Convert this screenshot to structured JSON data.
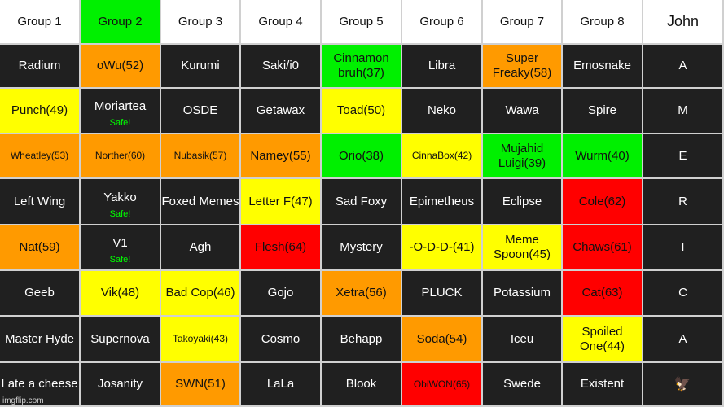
{
  "header": [
    "Group 1",
    "Group 2",
    "Group 3",
    "Group 4",
    "Group 5",
    "Group 6",
    "Group 7",
    "Group 8",
    "John"
  ],
  "header_colors": [
    "white",
    "green",
    "white",
    "white",
    "white",
    "white",
    "white",
    "white",
    "white"
  ],
  "rows": [
    {
      "cells": [
        {
          "text": "Radium",
          "color": "dark"
        },
        {
          "text": "oWu(52)",
          "color": "orange"
        },
        {
          "text": "Kurumi",
          "color": "dark"
        },
        {
          "text": "Saki/i0",
          "color": "dark"
        },
        {
          "text": "Cinnamon bruh(37)",
          "color": "green"
        },
        {
          "text": "Libra",
          "color": "dark"
        },
        {
          "text": "Super Freaky(58)",
          "color": "orange"
        },
        {
          "text": "Emosnake",
          "color": "dark"
        },
        {
          "text": "A",
          "color": "dark"
        }
      ]
    },
    {
      "cells": [
        {
          "text": "Punch(49)",
          "color": "yellow"
        },
        {
          "text": "Moriartea",
          "color": "dark",
          "note": "Safe!"
        },
        {
          "text": "OSDE",
          "color": "dark"
        },
        {
          "text": "Getawax",
          "color": "dark"
        },
        {
          "text": "Toad(50)",
          "color": "yellow"
        },
        {
          "text": "Neko",
          "color": "dark"
        },
        {
          "text": "Wawa",
          "color": "dark"
        },
        {
          "text": "Spire",
          "color": "dark"
        },
        {
          "text": "M",
          "color": "dark"
        }
      ]
    },
    {
      "cells": [
        {
          "text": "Wheatley(53)",
          "color": "orange",
          "small": true
        },
        {
          "text": "Norther(60)",
          "color": "orange",
          "small": true
        },
        {
          "text": "Nubasik(57)",
          "color": "orange",
          "small": true
        },
        {
          "text": "Namey(55)",
          "color": "orange"
        },
        {
          "text": "Orio(38)",
          "color": "green"
        },
        {
          "text": "CinnaBox(42)",
          "color": "yellow",
          "small": true
        },
        {
          "text": "Mujahid Luigi(39)",
          "color": "green"
        },
        {
          "text": "Wurm(40)",
          "color": "green"
        },
        {
          "text": "E",
          "color": "dark"
        }
      ]
    },
    {
      "cells": [
        {
          "text": "Left Wing",
          "color": "dark"
        },
        {
          "text": "Yakko",
          "color": "dark",
          "note": "Safe!"
        },
        {
          "text": "Foxed Memes",
          "color": "dark"
        },
        {
          "text": "Letter F(47)",
          "color": "yellow"
        },
        {
          "text": "Sad Foxy",
          "color": "dark"
        },
        {
          "text": "Epimetheus",
          "color": "dark"
        },
        {
          "text": "Eclipse",
          "color": "dark"
        },
        {
          "text": "Cole(62)",
          "color": "red"
        },
        {
          "text": "R",
          "color": "dark"
        }
      ]
    },
    {
      "cells": [
        {
          "text": "Nat(59)",
          "color": "orange"
        },
        {
          "text": "V1",
          "color": "dark",
          "note": "Safe!"
        },
        {
          "text": "Agh",
          "color": "dark"
        },
        {
          "text": "Flesh(64)",
          "color": "red"
        },
        {
          "text": "Mystery",
          "color": "dark"
        },
        {
          "text": "-O-D-D-(41)",
          "color": "yellow"
        },
        {
          "text": "Meme Spoon(45)",
          "color": "yellow"
        },
        {
          "text": "Chaws(61)",
          "color": "red"
        },
        {
          "text": "I",
          "color": "dark"
        }
      ]
    },
    {
      "cells": [
        {
          "text": "Geeb",
          "color": "dark"
        },
        {
          "text": "Vik(48)",
          "color": "yellow"
        },
        {
          "text": "Bad Cop(46)",
          "color": "yellow"
        },
        {
          "text": "Gojo",
          "color": "dark"
        },
        {
          "text": "Xetra(56)",
          "color": "orange"
        },
        {
          "text": "PLUCK",
          "color": "dark"
        },
        {
          "text": "Potassium",
          "color": "dark"
        },
        {
          "text": "Cat(63)",
          "color": "red"
        },
        {
          "text": "C",
          "color": "dark"
        }
      ]
    },
    {
      "cells": [
        {
          "text": "Master Hyde",
          "color": "dark"
        },
        {
          "text": "Supernova",
          "color": "dark"
        },
        {
          "text": "Takoyaki(43)",
          "color": "yellow",
          "small": true
        },
        {
          "text": "Cosmo",
          "color": "dark"
        },
        {
          "text": "Behapp",
          "color": "dark"
        },
        {
          "text": "Soda(54)",
          "color": "orange"
        },
        {
          "text": "Iceu",
          "color": "dark"
        },
        {
          "text": "Spoiled One(44)",
          "color": "yellow"
        },
        {
          "text": "A",
          "color": "dark"
        }
      ]
    },
    {
      "cells": [
        {
          "text": "I ate a cheese",
          "color": "dark"
        },
        {
          "text": "Josanity",
          "color": "dark"
        },
        {
          "text": "SWN(51)",
          "color": "orange"
        },
        {
          "text": "LaLa",
          "color": "dark"
        },
        {
          "text": "Blook",
          "color": "dark"
        },
        {
          "text": "ObiWON(65)",
          "color": "red",
          "small": true
        },
        {
          "text": "Swede",
          "color": "dark"
        },
        {
          "text": "Existent",
          "color": "dark"
        },
        {
          "text": "🦅",
          "color": "dark",
          "icon": "eagle-icon"
        }
      ]
    }
  ],
  "watermark": "imgflip.com"
}
